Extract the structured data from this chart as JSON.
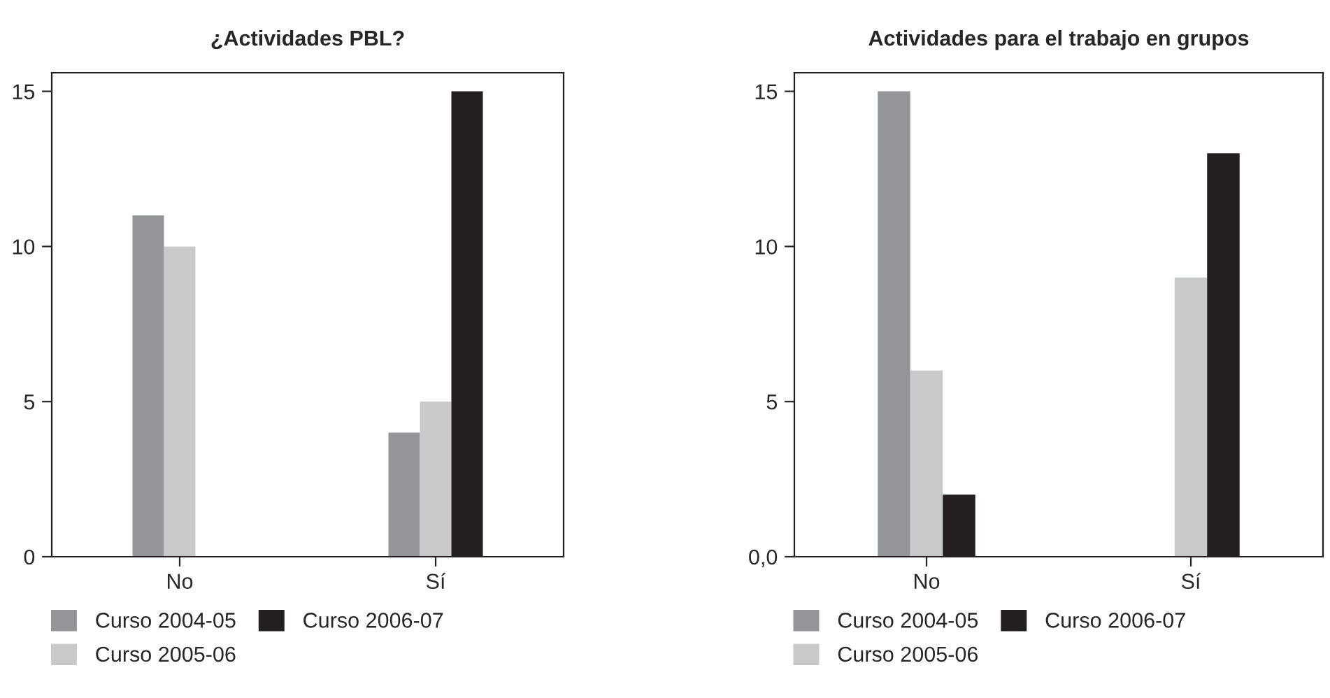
{
  "chart_data": [
    {
      "type": "bar",
      "title": "¿Actividades PBL?",
      "categories": [
        "No",
        "Sí"
      ],
      "series": [
        {
          "name": "Curso 2004-05",
          "color": "#939598",
          "values": [
            11,
            4
          ]
        },
        {
          "name": "Curso 2005-06",
          "color": "#c8c9cb",
          "values": [
            10,
            5
          ]
        },
        {
          "name": "Curso 2006-07",
          "color": "#231f20",
          "values": [
            0,
            15
          ]
        }
      ],
      "ylim": [
        0,
        15.6
      ],
      "yticks": [
        0,
        5,
        10,
        15
      ],
      "grid": false,
      "legend": "bottom"
    },
    {
      "type": "bar",
      "title": "Actividades para el trabajo en grupos",
      "categories": [
        "No",
        "Sí"
      ],
      "series": [
        {
          "name": "Curso 2004-05",
          "color": "#939598",
          "values": [
            15,
            0
          ]
        },
        {
          "name": "Curso 2005-06",
          "color": "#c8c9cb",
          "values": [
            6,
            9
          ]
        },
        {
          "name": "Curso 2006-07",
          "color": "#231f20",
          "values": [
            2,
            13
          ]
        }
      ],
      "ylim": [
        0,
        15.6
      ],
      "yticks": [
        {
          "value": 0,
          "label": "0,0"
        },
        5,
        10,
        15
      ],
      "grid": false,
      "legend": "bottom"
    }
  ]
}
